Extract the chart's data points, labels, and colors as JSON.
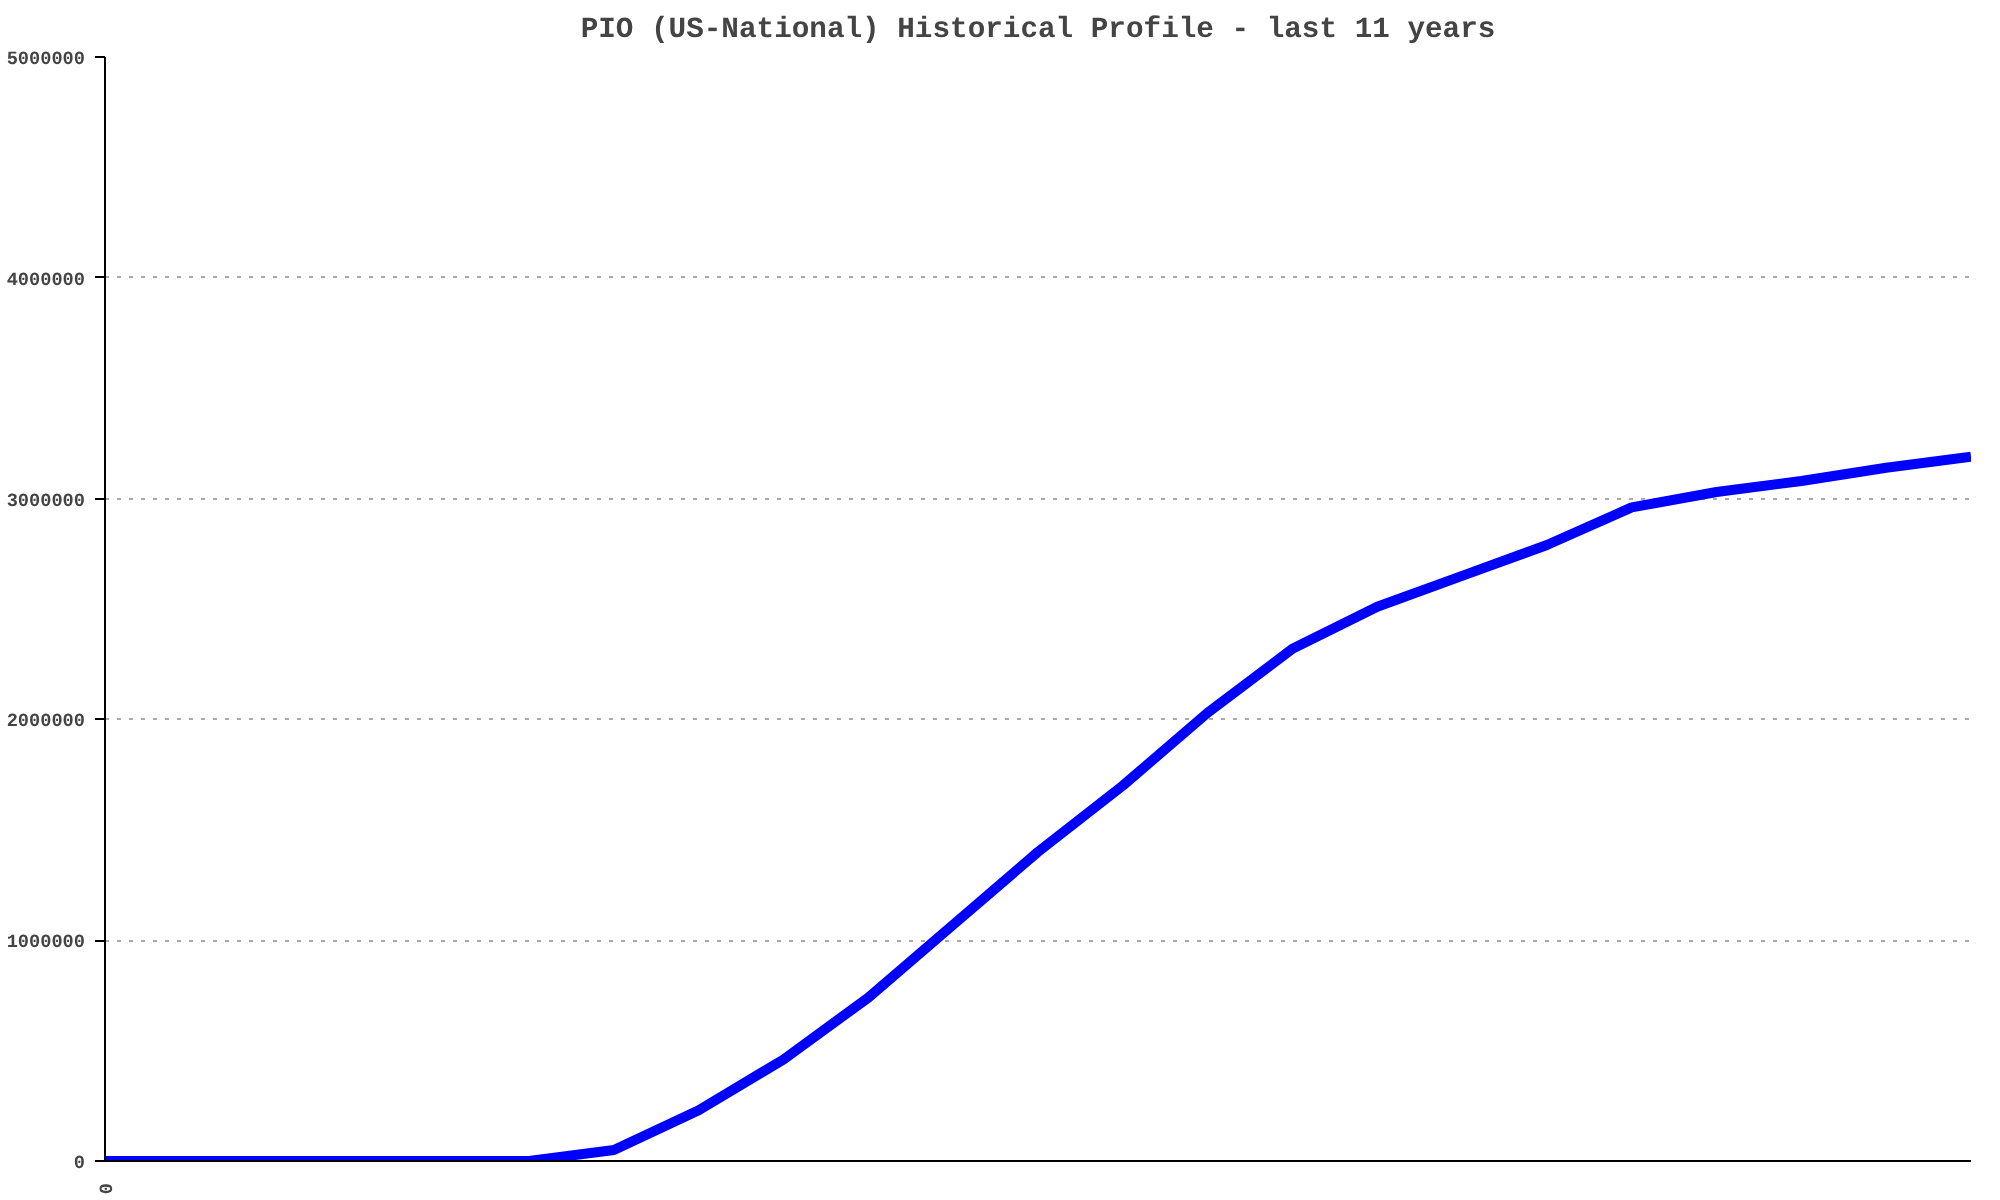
{
  "chart_data": {
    "type": "line",
    "title": "PIO (US-National) Historical Profile - last 11 years",
    "categories": [
      "0",
      null,
      null,
      null,
      null,
      null,
      null,
      null,
      null,
      null,
      null,
      null,
      null,
      null,
      null,
      null,
      null,
      null,
      null,
      null,
      null,
      null,
      null
    ],
    "series": [
      {
        "color": "#0000ff",
        "values": [
          0,
          0,
          0,
          0,
          0,
          0,
          50000,
          230000,
          460000,
          740000,
          1070000,
          1400000,
          1700000,
          2030000,
          2320000,
          2510000,
          2650000,
          2790000,
          2960000,
          3030000,
          3080000,
          3140000,
          3190000
        ]
      }
    ],
    "ylim": [
      0,
      5000000
    ],
    "yticks": [
      0,
      1000000,
      2000000,
      3000000,
      4000000,
      5000000
    ],
    "grid": "y",
    "marker": "none",
    "line_style": "solid"
  }
}
